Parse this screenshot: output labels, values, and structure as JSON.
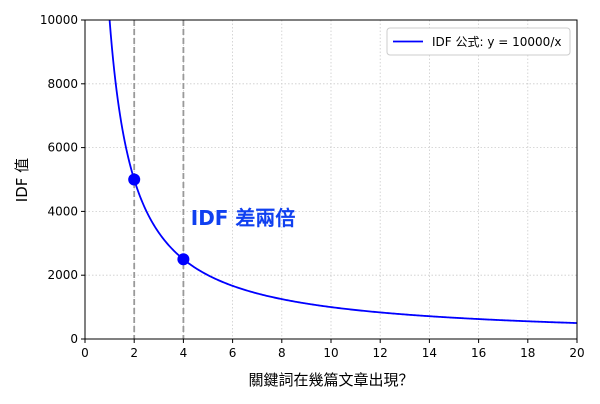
{
  "chart_data": {
    "type": "line",
    "title": "",
    "xlabel": "關鍵詞在幾篇文章出現？",
    "ylabel": "IDF 值",
    "xlim": [
      0,
      20
    ],
    "ylim": [
      0,
      10000
    ],
    "xticks": [
      0,
      2,
      4,
      6,
      8,
      10,
      12,
      14,
      16,
      18,
      20
    ],
    "yticks": [
      0,
      2000,
      4000,
      6000,
      8000,
      10000
    ],
    "grid": true,
    "legend_position": "top-right",
    "series": [
      {
        "name": "IDF 公式: y = 10000/x",
        "formula": "y = 10000/x",
        "x_range": [
          1,
          20
        ],
        "color": "#0000ff"
      }
    ],
    "points": [
      {
        "x": 2,
        "y": 5000,
        "color": "#0000ff"
      },
      {
        "x": 4,
        "y": 2500,
        "color": "#0000ff"
      }
    ],
    "vlines": [
      {
        "x": 2,
        "style": "dashed",
        "color": "#999999"
      },
      {
        "x": 4,
        "style": "dashed",
        "color": "#999999"
      }
    ],
    "annotation": {
      "text": "IDF 差兩倍",
      "x": 4.3,
      "y": 3800,
      "color": "#1040f0"
    }
  }
}
